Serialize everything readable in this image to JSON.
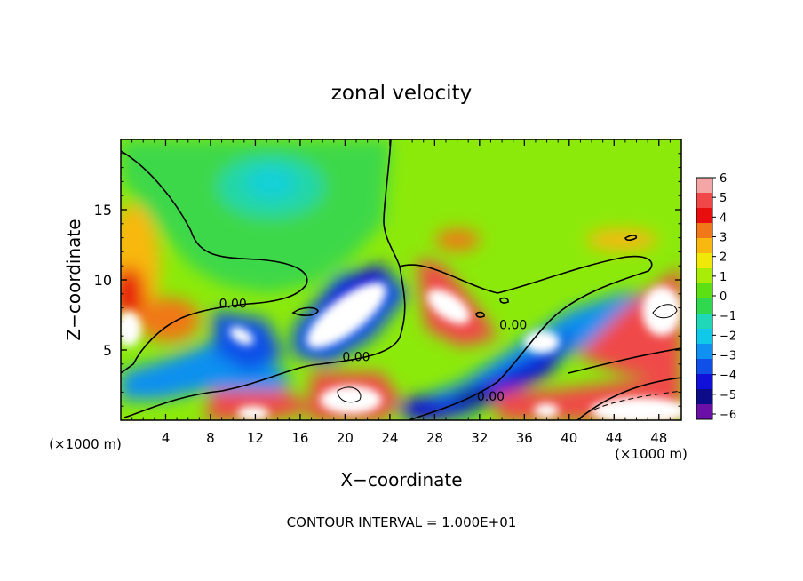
{
  "chart_data": {
    "type": "heatmap",
    "title": "zonal velocity",
    "xlabel": "X−coordinate",
    "ylabel": "Z−coordinate",
    "x_unit_left": "(×1000 m)",
    "x_unit_right": "(×1000 m)",
    "footer": "CONTOUR INTERVAL = 1.000E+01",
    "xlim": [
      0,
      50
    ],
    "ylim": [
      0,
      20
    ],
    "x_ticks": [
      4,
      8,
      12,
      16,
      20,
      24,
      28,
      32,
      36,
      40,
      44,
      48
    ],
    "y_ticks": [
      5,
      10,
      15
    ],
    "colorbar": {
      "labels": [
        "6",
        "5",
        "4",
        "3",
        "2",
        "1",
        "0",
        "−1",
        "−2",
        "−3",
        "−4",
        "−5",
        "−6"
      ],
      "colors": [
        "#f4a6a6",
        "#f04848",
        "#e80e0e",
        "#f07818",
        "#f8b810",
        "#f0e808",
        "#a8ec08",
        "#5ce014",
        "#30d850",
        "#20d8b8",
        "#10c8e8",
        "#1090f0",
        "#1050e8",
        "#1010d8",
        "#0c0c88",
        "#6a10a8"
      ]
    },
    "contour_labels": [
      {
        "text": "0.00",
        "x": 10,
        "z": 8.0
      },
      {
        "text": "0.00",
        "x": 21,
        "z": 4.2
      },
      {
        "text": "0.00",
        "x": 35,
        "z": 6.5
      },
      {
        "text": "0.00",
        "x": 33,
        "z": 1.4
      }
    ],
    "grid": false,
    "legend": "right"
  }
}
